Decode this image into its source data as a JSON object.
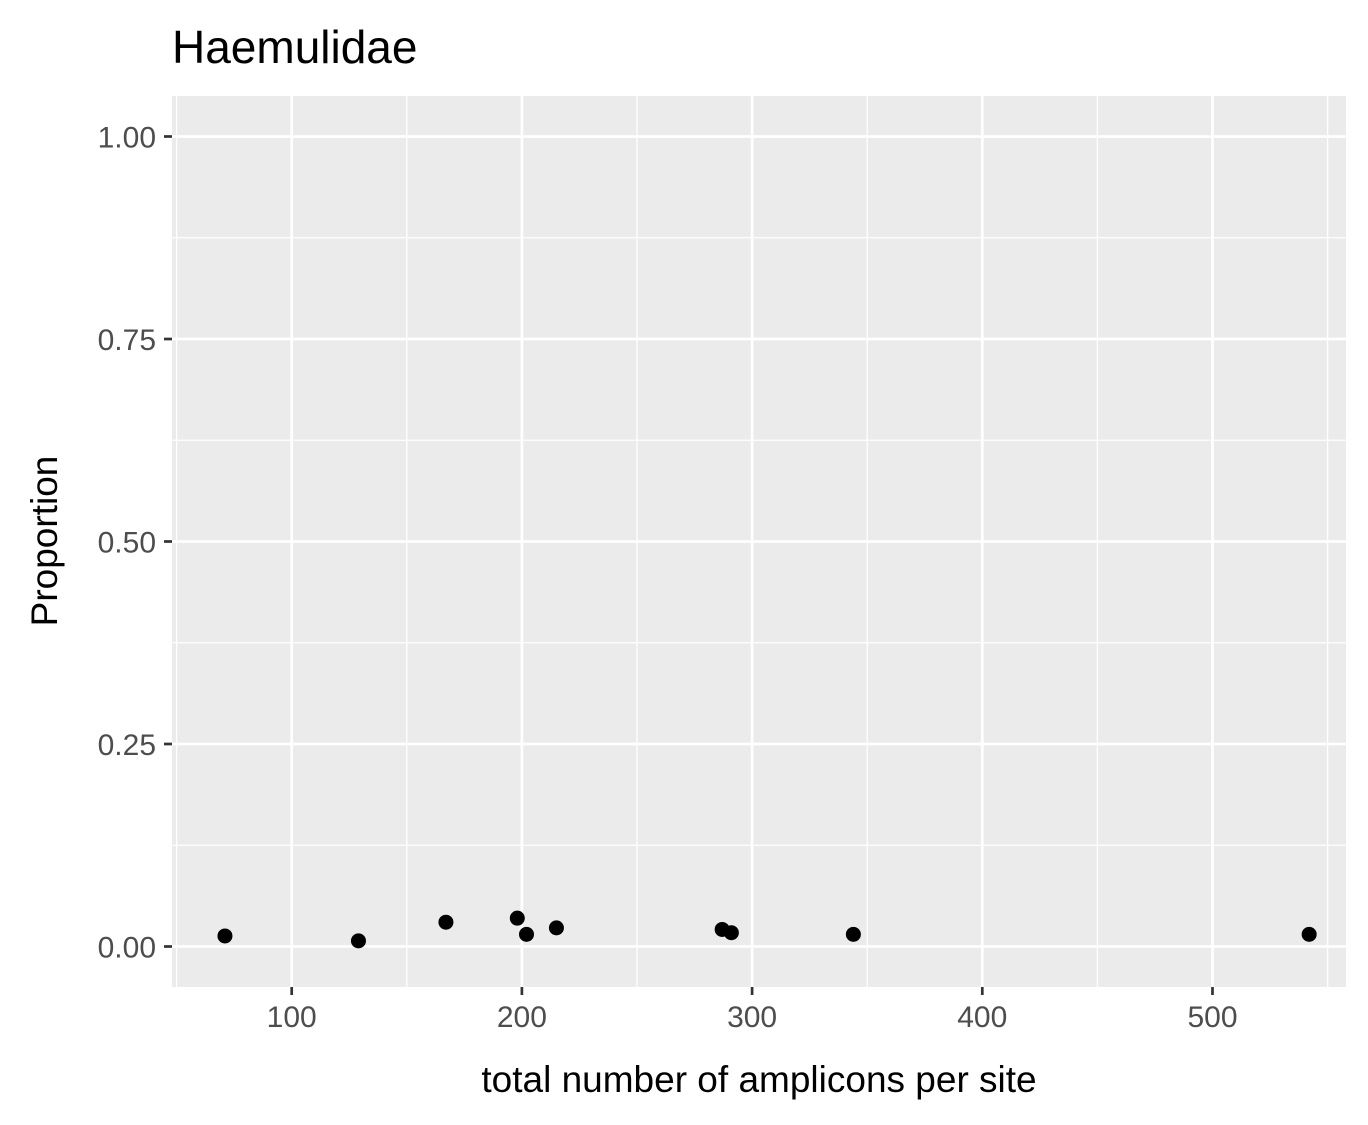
{
  "chart_data": {
    "type": "scatter",
    "title": "Haemulidae",
    "xlabel": "total number of amplicons per site",
    "ylabel": "Proportion",
    "xlim": [
      48,
      558
    ],
    "ylim": [
      -0.05,
      1.05
    ],
    "x_ticks": [
      100,
      200,
      300,
      400,
      500
    ],
    "x_tick_labels": [
      "100",
      "200",
      "300",
      "400",
      "500"
    ],
    "y_ticks": [
      0,
      0.25,
      0.5,
      0.75,
      1.0
    ],
    "y_tick_labels": [
      "0.00",
      "0.25",
      "0.50",
      "0.75",
      "1.00"
    ],
    "grid": true,
    "panel_background": "#ebebeb",
    "grid_color": "#ffffff",
    "point_color": "#000000",
    "points": [
      {
        "x": 71,
        "y": 0.013
      },
      {
        "x": 129,
        "y": 0.007
      },
      {
        "x": 167,
        "y": 0.03
      },
      {
        "x": 198,
        "y": 0.035
      },
      {
        "x": 202,
        "y": 0.015
      },
      {
        "x": 215,
        "y": 0.023
      },
      {
        "x": 287,
        "y": 0.021
      },
      {
        "x": 291,
        "y": 0.017
      },
      {
        "x": 344,
        "y": 0.015
      },
      {
        "x": 542,
        "y": 0.015
      }
    ]
  }
}
